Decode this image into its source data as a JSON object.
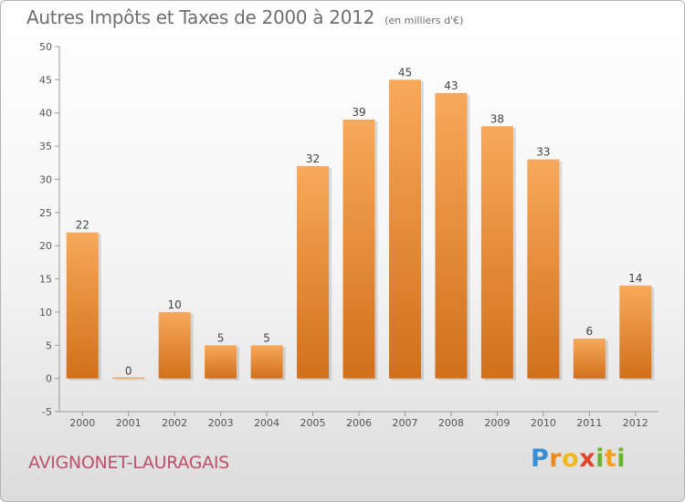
{
  "header": {
    "title": "Autres Impôts et Taxes de 2000 à 2012",
    "subtitle": "(en milliers d'€)"
  },
  "footer": {
    "town": "AVIGNONET-LAURAGAIS",
    "brand": "Proxiti"
  },
  "colors": {
    "bar_top": "#f8a95a",
    "bar_bottom": "#d0701c",
    "text": "#6e6e6e",
    "town": "#c0506a"
  },
  "chart_data": {
    "type": "bar",
    "title": "Autres Impôts et Taxes de 2000 à 2012",
    "subtitle": "(en milliers d'€)",
    "categories": [
      "2000",
      "2001",
      "2002",
      "2003",
      "2004",
      "2005",
      "2006",
      "2007",
      "2008",
      "2009",
      "2010",
      "2011",
      "2012"
    ],
    "values": [
      22,
      0,
      10,
      5,
      5,
      32,
      39,
      45,
      43,
      38,
      33,
      6,
      14
    ],
    "data_labels": [
      "22",
      "0",
      "10",
      "5",
      "5",
      "32",
      "39",
      "45",
      "43",
      "38",
      "33",
      "6",
      "14"
    ],
    "ylim": [
      -5,
      50
    ],
    "yticks": [
      -5,
      0,
      5,
      10,
      15,
      20,
      25,
      30,
      35,
      40,
      45,
      50
    ],
    "xlabel": "",
    "ylabel": "",
    "grid": false,
    "legend": "none"
  }
}
